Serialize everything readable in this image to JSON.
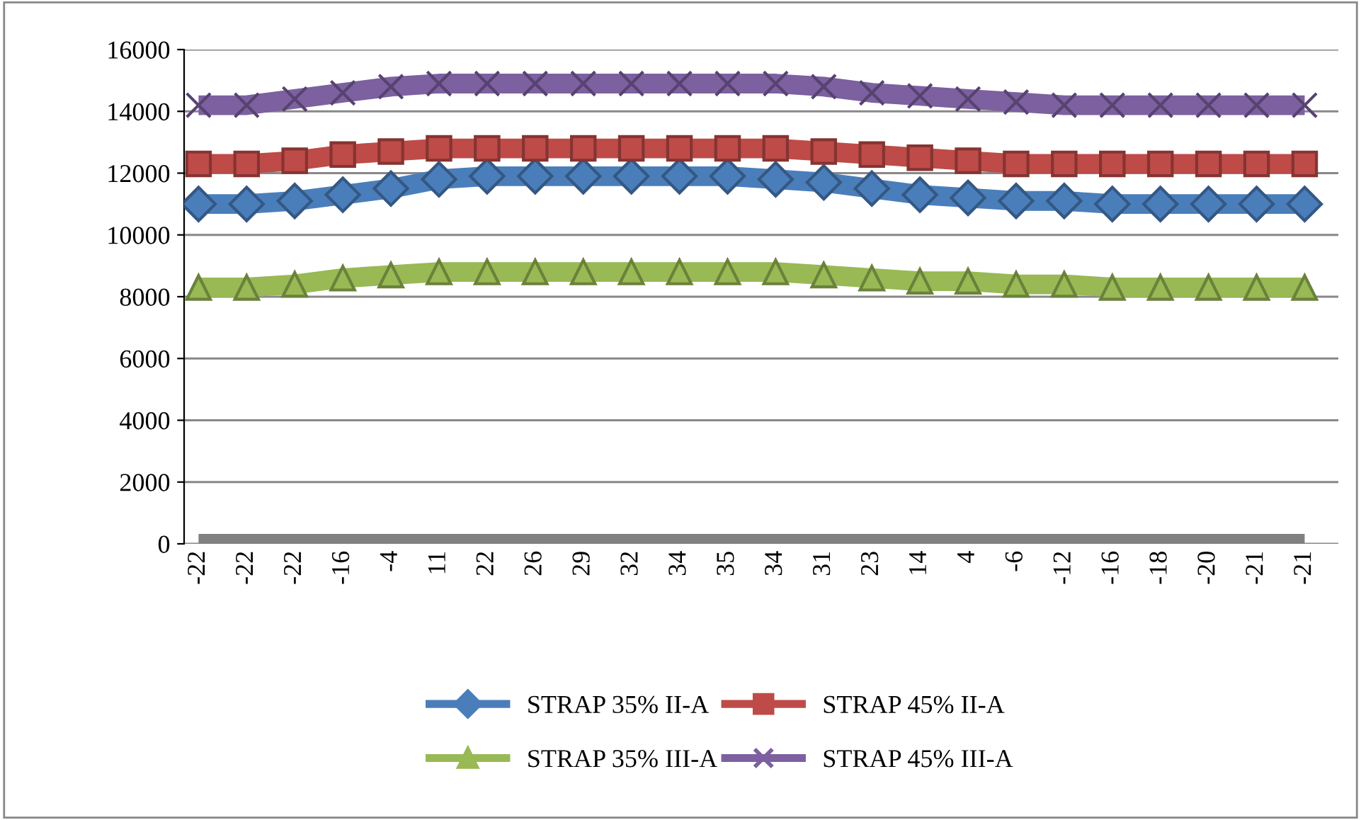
{
  "chart_data": {
    "type": "line",
    "categories": [
      "-22",
      "-22",
      "-22",
      "-16",
      "-4",
      "11",
      "22",
      "26",
      "29",
      "32",
      "34",
      "35",
      "34",
      "31",
      "23",
      "14",
      "4",
      "-6",
      "-12",
      "-16",
      "-18",
      "-20",
      "-21",
      "-21"
    ],
    "series": [
      {
        "name": "STRAP 35% II-A",
        "color": "#4a7ebb",
        "marker": "diamond",
        "values": [
          11000,
          11000,
          11100,
          11300,
          11500,
          11800,
          11900,
          11900,
          11900,
          11900,
          11900,
          11900,
          11800,
          11700,
          11500,
          11300,
          11200,
          11100,
          11100,
          11000,
          11000,
          11000,
          11000,
          11000
        ]
      },
      {
        "name": "STRAP 45% II-A",
        "color": "#be4b48",
        "marker": "square",
        "values": [
          12300,
          12300,
          12400,
          12600,
          12700,
          12800,
          12800,
          12800,
          12800,
          12800,
          12800,
          12800,
          12800,
          12700,
          12600,
          12500,
          12400,
          12300,
          12300,
          12300,
          12300,
          12300,
          12300,
          12300
        ]
      },
      {
        "name": "STRAP 35% III-A",
        "color": "#98b954",
        "marker": "triangle",
        "values": [
          8300,
          8300,
          8400,
          8600,
          8700,
          8800,
          8800,
          8800,
          8800,
          8800,
          8800,
          8800,
          8800,
          8700,
          8600,
          8500,
          8500,
          8400,
          8400,
          8300,
          8300,
          8300,
          8300,
          8300
        ]
      },
      {
        "name": "STRAP 45% III-A",
        "color": "#7d60a0",
        "marker": "cross",
        "values": [
          14200,
          14200,
          14400,
          14600,
          14800,
          14900,
          14900,
          14900,
          14900,
          14900,
          14900,
          14900,
          14900,
          14800,
          14600,
          14500,
          14400,
          14300,
          14200,
          14200,
          14200,
          14200,
          14200,
          14200
        ]
      },
      {
        "color": "#808080",
        "marker": "none",
        "values": [
          0,
          0,
          0,
          0,
          0,
          0,
          0,
          0,
          0,
          0,
          0,
          0,
          0,
          0,
          0,
          0,
          0,
          0,
          0,
          0,
          0,
          0,
          0,
          0
        ]
      }
    ],
    "ylim": [
      0,
      16000
    ],
    "yticks": [
      0,
      2000,
      4000,
      6000,
      8000,
      10000,
      12000,
      14000,
      16000
    ],
    "grid": "y",
    "legend": "bottom",
    "line_style": "solid"
  }
}
